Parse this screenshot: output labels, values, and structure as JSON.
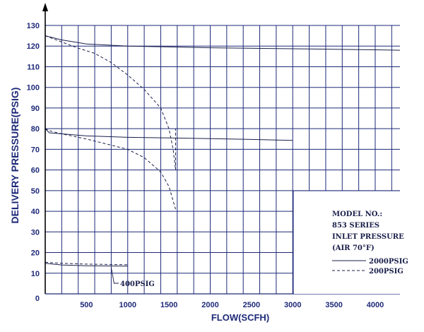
{
  "chart_data": {
    "type": "line",
    "xlabel": "FLOW(SCFH)",
    "ylabel": "DELIVERY PRESSURE(PSIG)",
    "xlim": [
      0,
      4300
    ],
    "ylim": [
      0,
      130
    ],
    "x_ticks": [
      500,
      1000,
      1500,
      2000,
      2500,
      3000,
      3500,
      4000
    ],
    "y_ticks": [
      0,
      10,
      20,
      30,
      40,
      50,
      60,
      70,
      80,
      90,
      100,
      110,
      120,
      130
    ],
    "grid": true,
    "colors": {
      "grid": "#1e2a78",
      "line": "#1a1f4a",
      "text": "#1e2a78"
    },
    "legend": {
      "placement": "bottom-right",
      "title_lines": [
        "MODEL NO.:",
        "853 SERIES",
        "INLET PRESSURE",
        "(AIR 70°F)"
      ],
      "entries": [
        {
          "label": "2000PSIG",
          "style": "solid"
        },
        {
          "label": "200PSIG",
          "style": "dashed"
        }
      ]
    },
    "annotations": [
      {
        "text": "400PSIG",
        "points_to": {
          "x": 800,
          "y": 13.5
        }
      }
    ],
    "series": [
      {
        "style": "solid",
        "points": [
          [
            0,
            125
          ],
          [
            200,
            123
          ],
          [
            500,
            121
          ],
          [
            1000,
            120
          ],
          [
            2000,
            119.2
          ],
          [
            3000,
            118.7
          ],
          [
            4000,
            118.2
          ],
          [
            4300,
            118
          ]
        ]
      },
      {
        "style": "dashed",
        "points": [
          [
            0,
            125
          ],
          [
            200,
            122
          ],
          [
            400,
            119
          ],
          [
            600,
            116.5
          ],
          [
            800,
            112
          ],
          [
            1000,
            106
          ],
          [
            1200,
            99
          ],
          [
            1400,
            90
          ],
          [
            1500,
            80
          ],
          [
            1550,
            70
          ],
          [
            1580,
            60
          ],
          [
            1580,
            80
          ]
        ]
      },
      {
        "style": "solid",
        "points": [
          [
            0,
            80
          ],
          [
            50,
            78
          ],
          [
            500,
            76.5
          ],
          [
            1000,
            75.8
          ],
          [
            1500,
            75.5
          ],
          [
            2000,
            75.2
          ],
          [
            2500,
            74.8
          ],
          [
            3000,
            74.3
          ]
        ]
      },
      {
        "style": "dashed",
        "points": [
          [
            0,
            80
          ],
          [
            50,
            79
          ],
          [
            200,
            77.5
          ],
          [
            500,
            75
          ],
          [
            800,
            72
          ],
          [
            1000,
            70
          ],
          [
            1200,
            66
          ],
          [
            1400,
            59
          ],
          [
            1500,
            52
          ],
          [
            1550,
            45
          ],
          [
            1580,
            41
          ]
        ]
      },
      {
        "style": "solid",
        "points": [
          [
            0,
            14.8
          ],
          [
            200,
            14
          ],
          [
            500,
            13.6
          ],
          [
            1000,
            13.4
          ]
        ]
      },
      {
        "style": "dashed",
        "points": [
          [
            0,
            15.3
          ],
          [
            200,
            14.8
          ],
          [
            500,
            14.4
          ],
          [
            1000,
            14.1
          ]
        ]
      }
    ]
  }
}
